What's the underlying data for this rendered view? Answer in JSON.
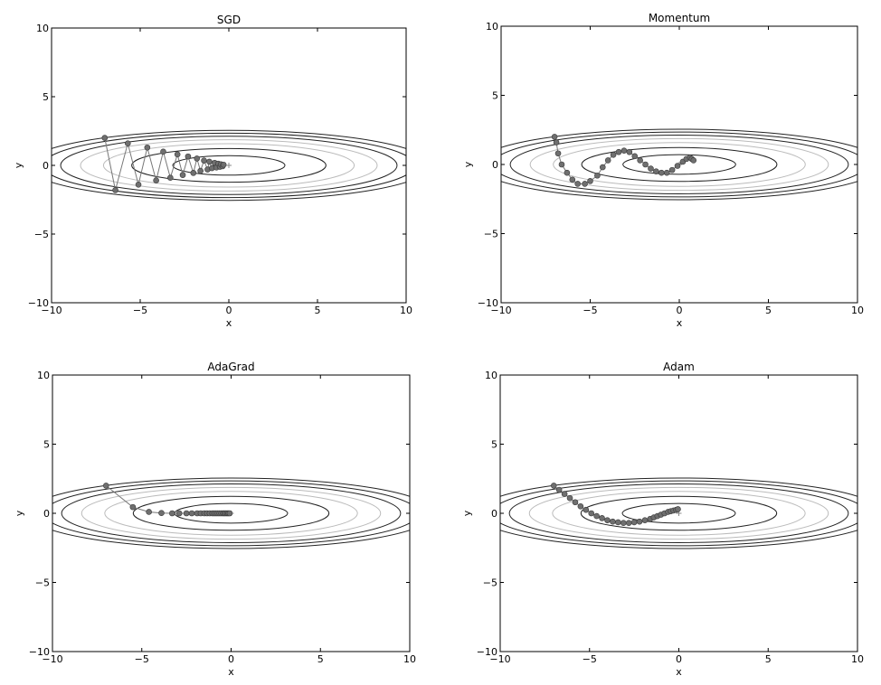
{
  "chart_data": [
    {
      "type": "line",
      "title": "SGD",
      "xlabel": "x",
      "ylabel": "y",
      "xlim": [
        -10,
        10
      ],
      "ylim": [
        -10,
        10
      ],
      "xticks": [
        -10,
        -5,
        0,
        5,
        10
      ],
      "yticks": [
        -10,
        -5,
        0,
        5,
        10
      ],
      "xtick_labels": [
        "−10",
        "−5",
        "0",
        "5",
        "10"
      ],
      "ytick_labels": [
        "−10",
        "−5",
        "0",
        "5",
        "10"
      ],
      "contour_levels": [
        0.5,
        1.5,
        2.5,
        3.5,
        4.5,
        5.5,
        6.5
      ],
      "minimum_marker": [
        0,
        0
      ],
      "series": [
        {
          "x": [
            -7.0,
            -6.4,
            -5.7,
            -5.1,
            -4.6,
            -4.1,
            -3.7,
            -3.3,
            -2.9,
            -2.6,
            -2.3,
            -2.0,
            -1.8,
            -1.6,
            -1.4,
            -1.2,
            -1.1,
            -0.95,
            -0.8,
            -0.7,
            -0.6,
            -0.5,
            -0.45,
            -0.35,
            -0.3
          ],
          "y": [
            2.0,
            -1.8,
            1.6,
            -1.4,
            1.3,
            -1.1,
            1.0,
            -0.9,
            0.8,
            -0.7,
            0.65,
            -0.55,
            0.5,
            -0.4,
            0.35,
            -0.3,
            0.27,
            -0.2,
            0.18,
            -0.15,
            0.12,
            -0.1,
            0.08,
            -0.06,
            0.05
          ]
        }
      ]
    },
    {
      "type": "line",
      "title": "Momentum",
      "xlabel": "x",
      "ylabel": "y",
      "xlim": [
        -10,
        10
      ],
      "ylim": [
        -10,
        10
      ],
      "xticks": [
        -10,
        -5,
        0,
        5,
        10
      ],
      "yticks": [
        -10,
        -5,
        0,
        5,
        10
      ],
      "xtick_labels": [
        "−10",
        "−5",
        "0",
        "5",
        "10"
      ],
      "ytick_labels": [
        "−10",
        "−5",
        "0",
        "5",
        "10"
      ],
      "contour_levels": [
        0.5,
        1.5,
        2.5,
        3.5,
        4.5,
        5.5,
        6.5
      ],
      "minimum_marker": [
        0,
        0
      ],
      "series": [
        {
          "x": [
            -7.0,
            -6.9,
            -6.8,
            -6.6,
            -6.3,
            -6.0,
            -5.7,
            -5.3,
            -5.0,
            -4.6,
            -4.3,
            -4.0,
            -3.7,
            -3.4,
            -3.1,
            -2.8,
            -2.5,
            -2.2,
            -1.9,
            -1.6,
            -1.3,
            -1.0,
            -0.7,
            -0.4,
            -0.1,
            0.2,
            0.4,
            0.6,
            0.7,
            0.8
          ],
          "y": [
            2.0,
            1.6,
            0.8,
            0.0,
            -0.6,
            -1.1,
            -1.4,
            -1.4,
            -1.2,
            -0.8,
            -0.2,
            0.3,
            0.7,
            0.9,
            1.0,
            0.9,
            0.6,
            0.3,
            0.0,
            -0.3,
            -0.5,
            -0.6,
            -0.6,
            -0.4,
            -0.1,
            0.2,
            0.4,
            0.5,
            0.4,
            0.3
          ]
        }
      ]
    },
    {
      "type": "line",
      "title": "AdaGrad",
      "xlabel": "x",
      "ylabel": "y",
      "xlim": [
        -10,
        10
      ],
      "ylim": [
        -10,
        10
      ],
      "xticks": [
        -10,
        -5,
        0,
        5,
        10
      ],
      "yticks": [
        -10,
        -5,
        0,
        5,
        10
      ],
      "xtick_labels": [
        "−10",
        "−5",
        "0",
        "5",
        "10"
      ],
      "ytick_labels": [
        "−10",
        "−5",
        "0",
        "5",
        "10"
      ],
      "contour_levels": [
        0.5,
        1.5,
        2.5,
        3.5,
        4.5,
        5.5,
        6.5
      ],
      "minimum_marker": [
        0,
        0
      ],
      "series": [
        {
          "x": [
            -7.0,
            -5.5,
            -4.6,
            -3.9,
            -3.3,
            -2.9,
            -2.5,
            -2.2,
            -1.9,
            -1.7,
            -1.5,
            -1.35,
            -1.2,
            -1.05,
            -0.95,
            -0.85,
            -0.75,
            -0.65,
            -0.55,
            -0.45,
            -0.38,
            -0.3,
            -0.22,
            -0.15,
            -0.08
          ],
          "y": [
            2.0,
            0.45,
            0.1,
            0.02,
            0.0,
            0.0,
            0.0,
            0.0,
            0.0,
            0.0,
            0.0,
            0.0,
            0.0,
            0.0,
            0.0,
            0.0,
            0.0,
            0.0,
            0.0,
            0.0,
            0.0,
            0.0,
            0.0,
            0.0,
            0.0
          ]
        }
      ]
    },
    {
      "type": "line",
      "title": "Adam",
      "xlabel": "x",
      "ylabel": "y",
      "xlim": [
        -10,
        10
      ],
      "ylim": [
        -10,
        10
      ],
      "xticks": [
        -10,
        -5,
        0,
        5,
        10
      ],
      "yticks": [
        -10,
        -5,
        0,
        5,
        10
      ],
      "xtick_labels": [
        "−10",
        "−5",
        "0",
        "5",
        "10"
      ],
      "ytick_labels": [
        "−10",
        "−5",
        "0",
        "5",
        "10"
      ],
      "contour_levels": [
        0.5,
        1.5,
        2.5,
        3.5,
        4.5,
        5.5,
        6.5
      ],
      "minimum_marker": [
        0,
        0
      ],
      "series": [
        {
          "x": [
            -7.0,
            -6.7,
            -6.4,
            -6.1,
            -5.8,
            -5.5,
            -5.2,
            -4.9,
            -4.6,
            -4.3,
            -4.0,
            -3.7,
            -3.4,
            -3.1,
            -2.8,
            -2.5,
            -2.2,
            -1.9,
            -1.6,
            -1.4,
            -1.2,
            -1.0,
            -0.8,
            -0.6,
            -0.45,
            -0.3,
            -0.15,
            -0.05
          ],
          "y": [
            2.0,
            1.7,
            1.4,
            1.1,
            0.8,
            0.5,
            0.25,
            0.0,
            -0.2,
            -0.35,
            -0.5,
            -0.6,
            -0.65,
            -0.7,
            -0.7,
            -0.65,
            -0.6,
            -0.5,
            -0.4,
            -0.3,
            -0.2,
            -0.1,
            0.0,
            0.1,
            0.15,
            0.2,
            0.25,
            0.3
          ]
        }
      ]
    }
  ]
}
